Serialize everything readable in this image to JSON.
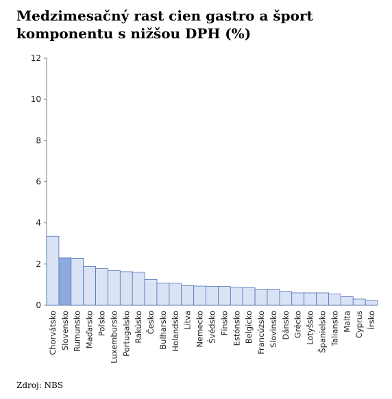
{
  "title": "Medzimesačný rast cien gastro a šport komponentu s nižšou DPH (%)",
  "source": "Zdroj: NBS",
  "chart_data": {
    "type": "bar",
    "title": "Medzimesačný rast cien gastro a šport komponentu s nižšou DPH (%)",
    "xlabel": "",
    "ylabel": "",
    "ylim": [
      0,
      12
    ],
    "yticks": [
      0,
      2,
      4,
      6,
      8,
      10,
      12
    ],
    "grid": false,
    "legend": "none",
    "categories": [
      "Chorvátsko",
      "Slovensko",
      "Rumunsko",
      "Maďarsko",
      "Poľsko",
      "Luxembursko",
      "Portugalsko",
      "Rakúsko",
      "Česko",
      "Bulharsko",
      "Holandsko",
      "Litva",
      "Nemecko",
      "Švédsko",
      "Fínsko",
      "Estónsko",
      "Belgicko",
      "Francúzsko",
      "Slovinsko",
      "Dánsko",
      "Grécko",
      "Lotyšsko",
      "Španielsko",
      "Taliansko",
      "Malta",
      "Cyprus",
      "Írsko"
    ],
    "values": [
      3.35,
      2.3,
      2.28,
      1.88,
      1.78,
      1.68,
      1.63,
      1.6,
      1.25,
      1.07,
      1.07,
      0.95,
      0.93,
      0.91,
      0.91,
      0.88,
      0.85,
      0.78,
      0.78,
      0.67,
      0.6,
      0.6,
      0.6,
      0.55,
      0.42,
      0.3,
      0.23
    ],
    "highlight_category": "Slovensko",
    "colors": {
      "bar": "#d9e3f5",
      "bar_highlight": "#8ea9db",
      "bar_edge": "#4f72b8",
      "axis": "#7f7f7f"
    }
  }
}
